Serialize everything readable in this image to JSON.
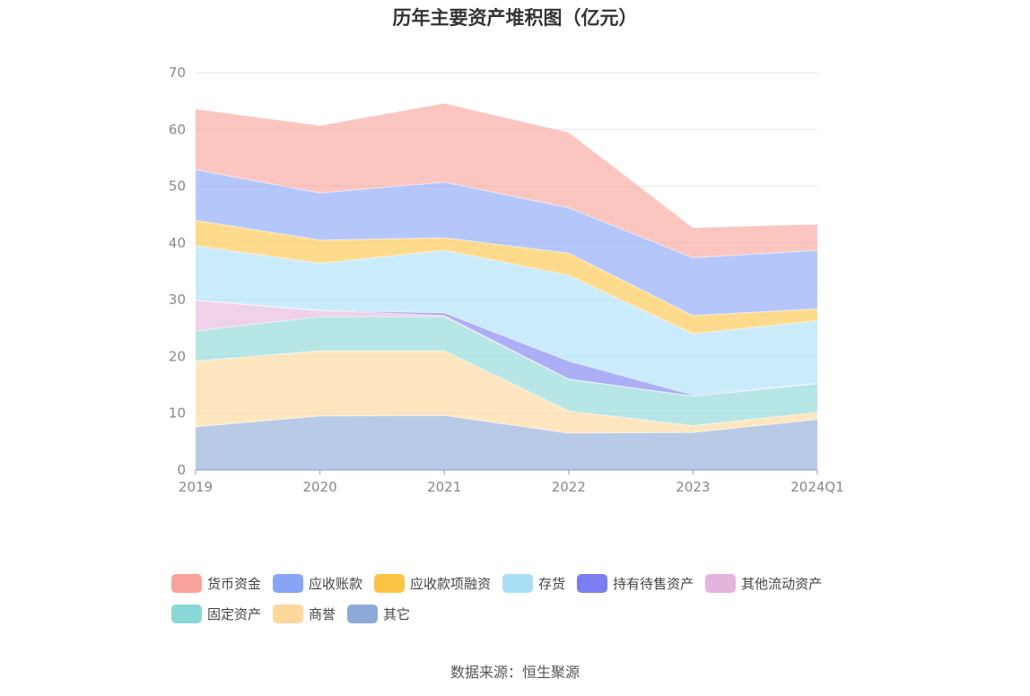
{
  "chart_data": {
    "type": "area",
    "stacked": true,
    "title": "历年主要资产堆积图（亿元）",
    "x": [
      "2019",
      "2020",
      "2021",
      "2022",
      "2023",
      "2024Q1"
    ],
    "ylim": [
      0,
      70
    ],
    "yticks": [
      0,
      10,
      20,
      30,
      40,
      50,
      60,
      70
    ],
    "grid": true,
    "legend_position": "bottom",
    "series": [
      {
        "name": "其它",
        "color": "#8eaad8",
        "values": [
          7.6,
          9.5,
          9.6,
          6.5,
          6.6,
          8.9
        ]
      },
      {
        "name": "商誉",
        "color": "#fdd89a",
        "values": [
          11.6,
          11.5,
          11.4,
          3.9,
          1.2,
          1.3
        ]
      },
      {
        "name": "固定资产",
        "color": "#8ad7d6",
        "values": [
          5.3,
          6.0,
          6.0,
          5.6,
          5.2,
          5.0
        ]
      },
      {
        "name": "其他流动资产",
        "color": "#e5b4dd",
        "values": [
          5.4,
          1.1,
          0.2,
          0,
          0,
          0
        ]
      },
      {
        "name": "持有待售资产",
        "color": "#7b7ef0",
        "values": [
          0,
          0,
          0.5,
          3.2,
          0.2,
          0.1
        ]
      },
      {
        "name": "存货",
        "color": "#a9def7",
        "values": [
          9.6,
          8.3,
          11.0,
          15.1,
          10.8,
          11.0
        ]
      },
      {
        "name": "应收款项融资",
        "color": "#fdc545",
        "values": [
          4.5,
          4.1,
          2.2,
          3.9,
          3.2,
          2.1
        ]
      },
      {
        "name": "应收账款",
        "color": "#88a4f7",
        "values": [
          8.9,
          8.3,
          9.8,
          8.0,
          10.2,
          10.3
        ]
      },
      {
        "name": "货币资金",
        "color": "#f9a29a",
        "values": [
          10.7,
          11.9,
          13.9,
          13.3,
          5.3,
          4.6
        ]
      }
    ]
  },
  "legend": {
    "items": [
      {
        "label": "货币资金",
        "color": "#f9a29a"
      },
      {
        "label": "应收账款",
        "color": "#88a4f7"
      },
      {
        "label": "应收款项融资",
        "color": "#fdc545"
      },
      {
        "label": "存货",
        "color": "#a9def7"
      },
      {
        "label": "持有待售资产",
        "color": "#7b7ef0"
      },
      {
        "label": "其他流动资产",
        "color": "#e5b4dd"
      },
      {
        "label": "固定资产",
        "color": "#8ad7d6"
      },
      {
        "label": "商誉",
        "color": "#fdd89a"
      },
      {
        "label": "其它",
        "color": "#8eaad8"
      }
    ]
  },
  "source": "数据来源：恒生聚源"
}
